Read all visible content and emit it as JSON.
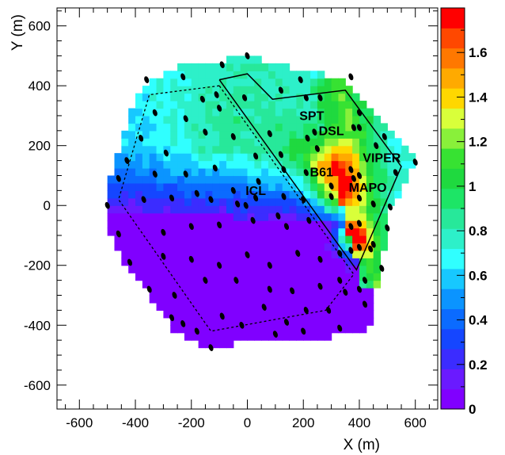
{
  "chart_data": {
    "type": "heatmap",
    "title": "",
    "xlabel": "X (m)",
    "ylabel": "Y (m)",
    "xlim": [
      -680,
      680
    ],
    "ylim": [
      -680,
      660
    ],
    "x_ticks": [
      -600,
      -400,
      -200,
      0,
      200,
      400,
      600
    ],
    "y_ticks": [
      -600,
      -400,
      -200,
      0,
      200,
      400,
      600
    ],
    "z_range": [
      0,
      1.8
    ],
    "colorbar_ticks": [
      0,
      0.2,
      0.4,
      0.6,
      0.8,
      1,
      1.2,
      1.4,
      1.6
    ],
    "colorbar_bins": [
      "#8000ff",
      "#6a1aff",
      "#3b2cff",
      "#1546ff",
      "#0b6bff",
      "#0b94ff",
      "#17c8ff",
      "#30ffff",
      "#2df0c9",
      "#27e89a",
      "#1de566",
      "#1fd93f",
      "#37e232",
      "#89f03a",
      "#d9ff3a",
      "#ffd700",
      "#ffaa00",
      "#ff7800",
      "#ff4800",
      "#ff0000"
    ],
    "grid": false,
    "labels": [
      {
        "text": "SPT",
        "x": 230,
        "y": 285
      },
      {
        "text": "DSL",
        "x": 300,
        "y": 235
      },
      {
        "text": "VIPER",
        "x": 480,
        "y": 145
      },
      {
        "text": "B61",
        "x": 265,
        "y": 97
      },
      {
        "text": "MAPO",
        "x": 430,
        "y": 45
      },
      {
        "text": "ICL",
        "x": 30,
        "y": 35
      }
    ],
    "solid_outline": [
      [
        -100,
        420
      ],
      [
        0,
        440
      ],
      [
        90,
        355
      ],
      [
        350,
        385
      ],
      [
        550,
        130
      ],
      [
        390,
        -215
      ],
      [
        -100,
        420
      ]
    ],
    "dashed_outline": [
      [
        -100,
        400
      ],
      [
        -350,
        370
      ],
      [
        -460,
        20
      ],
      [
        -130,
        -420
      ],
      [
        280,
        -350
      ],
      [
        380,
        -230
      ],
      [
        -100,
        400
      ]
    ],
    "sensors": [
      [
        0,
        500
      ],
      [
        -90,
        470
      ],
      [
        -360,
        420
      ],
      [
        -230,
        430
      ],
      [
        -110,
        370
      ],
      [
        -160,
        355
      ],
      [
        -10,
        360
      ],
      [
        120,
        385
      ],
      [
        190,
        420
      ],
      [
        210,
        360
      ],
      [
        260,
        360
      ],
      [
        370,
        430
      ],
      [
        400,
        310
      ],
      [
        400,
        260
      ],
      [
        -100,
        325
      ],
      [
        -330,
        310
      ],
      [
        -380,
        225
      ],
      [
        -220,
        290
      ],
      [
        -150,
        245
      ],
      [
        -50,
        230
      ],
      [
        80,
        240
      ],
      [
        215,
        225
      ],
      [
        240,
        245
      ],
      [
        250,
        190
      ],
      [
        490,
        230
      ],
      [
        380,
        260
      ],
      [
        120,
        170
      ],
      [
        30,
        165
      ],
      [
        -290,
        175
      ],
      [
        -430,
        150
      ],
      [
        -330,
        105
      ],
      [
        -220,
        105
      ],
      [
        -115,
        125
      ],
      [
        -180,
        40
      ],
      [
        -50,
        50
      ],
      [
        40,
        80
      ],
      [
        130,
        120
      ],
      [
        210,
        110
      ],
      [
        300,
        65
      ],
      [
        370,
        120
      ],
      [
        380,
        90
      ],
      [
        400,
        100
      ],
      [
        460,
        200
      ],
      [
        600,
        145
      ],
      [
        530,
        110
      ],
      [
        -460,
        90
      ],
      [
        -500,
        0
      ],
      [
        -370,
        20
      ],
      [
        -270,
        25
      ],
      [
        -130,
        20
      ],
      [
        -35,
        5
      ],
      [
        -5,
        0
      ],
      [
        30,
        25
      ],
      [
        130,
        30
      ],
      [
        200,
        20
      ],
      [
        300,
        30
      ],
      [
        400,
        25
      ],
      [
        450,
        5
      ],
      [
        510,
        -5
      ],
      [
        -460,
        -95
      ],
      [
        -300,
        -90
      ],
      [
        -200,
        -70
      ],
      [
        -100,
        -65
      ],
      [
        20,
        -50
      ],
      [
        110,
        -35
      ],
      [
        140,
        -70
      ],
      [
        220,
        -50
      ],
      [
        370,
        -70
      ],
      [
        400,
        -60
      ],
      [
        450,
        -130
      ],
      [
        500,
        -75
      ],
      [
        -420,
        -190
      ],
      [
        -300,
        -170
      ],
      [
        -200,
        -180
      ],
      [
        -100,
        -200
      ],
      [
        0,
        -165
      ],
      [
        80,
        -200
      ],
      [
        180,
        -160
      ],
      [
        260,
        -180
      ],
      [
        330,
        -160
      ],
      [
        370,
        -150
      ],
      [
        400,
        -140
      ],
      [
        440,
        -145
      ],
      [
        480,
        -210
      ],
      [
        -350,
        -280
      ],
      [
        -260,
        -300
      ],
      [
        -150,
        -250
      ],
      [
        -40,
        -250
      ],
      [
        80,
        -280
      ],
      [
        160,
        -285
      ],
      [
        260,
        -270
      ],
      [
        330,
        -250
      ],
      [
        420,
        -250
      ],
      [
        400,
        -280
      ],
      [
        -270,
        -375
      ],
      [
        -180,
        -420
      ],
      [
        -90,
        -370
      ],
      [
        60,
        -340
      ],
      [
        140,
        -390
      ],
      [
        210,
        -350
      ],
      [
        290,
        -350
      ],
      [
        350,
        -290
      ],
      [
        420,
        -330
      ],
      [
        -230,
        -395
      ],
      [
        -20,
        -400
      ],
      [
        100,
        -430
      ],
      [
        200,
        -420
      ],
      [
        330,
        -410
      ],
      [
        -130,
        -475
      ]
    ]
  }
}
